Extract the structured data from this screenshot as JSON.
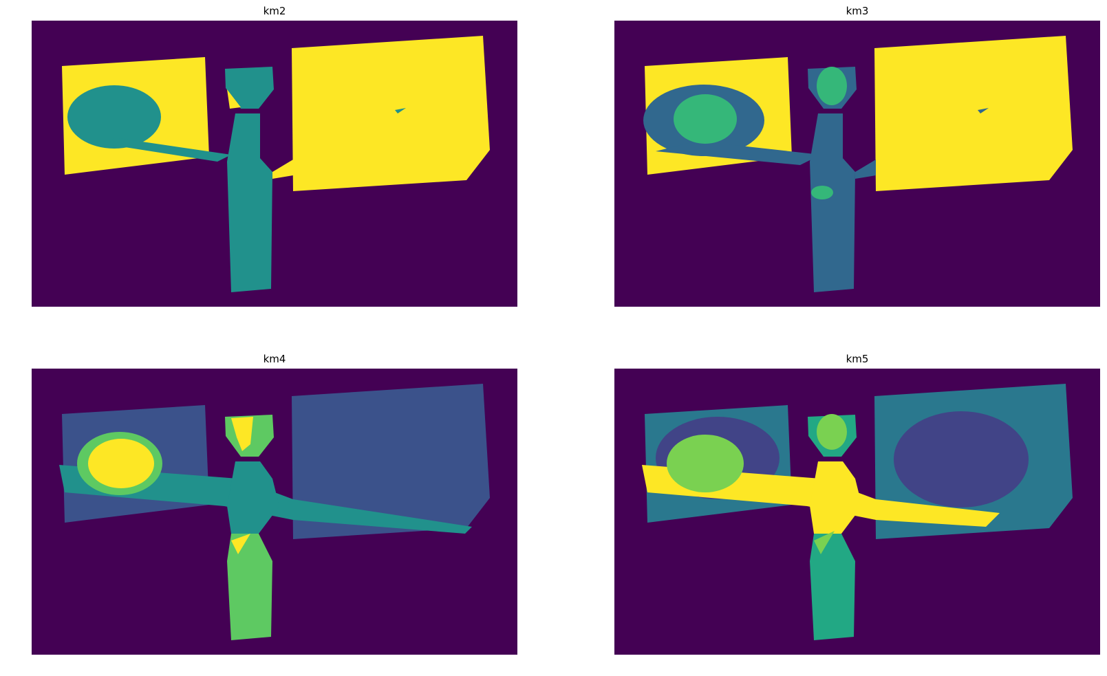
{
  "panels": [
    {
      "title": "km2",
      "clusters": 2
    },
    {
      "title": "km3",
      "clusters": 3
    },
    {
      "title": "km4",
      "clusters": 4
    },
    {
      "title": "km5",
      "clusters": 5
    }
  ],
  "colors": {
    "background": "#440154",
    "yellow": "#fde725",
    "teal": "#21918c",
    "blue": "#3b528b",
    "slate": "#31688e",
    "green": "#35b779",
    "lightgreen": "#5ec962",
    "lime": "#7ad151",
    "indigo": "#414487",
    "cyan": "#2a788e",
    "sea": "#22a884"
  }
}
